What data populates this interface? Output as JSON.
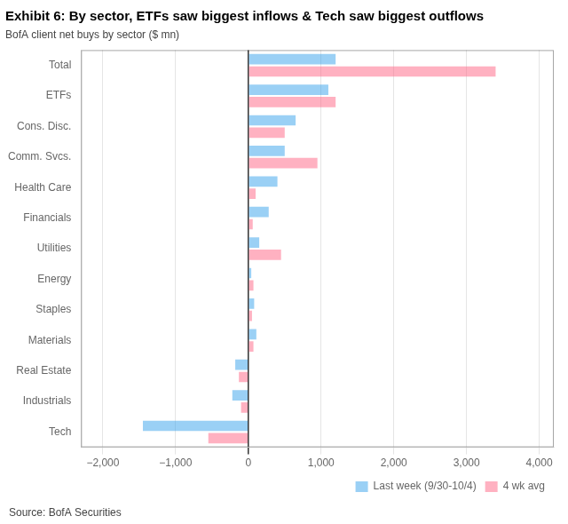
{
  "chart_data": {
    "type": "bar",
    "orientation": "horizontal",
    "title": "Exhibit 6: By sector, ETFs saw biggest inflows & Tech saw biggest outflows",
    "subtitle": "BofA client net buys by sector ($ mn)",
    "annotations": [
      "Source: BofA Securities"
    ],
    "categories": [
      "Total",
      "ETFs",
      "Cons. Disc.",
      "Comm. Svcs.",
      "Health Care",
      "Financials",
      "Utilities",
      "Energy",
      "Staples",
      "Materials",
      "Real Estate",
      "Industrials",
      "Tech"
    ],
    "series": [
      {
        "name": "Last week (9/30-10/4)",
        "values": [
          1200,
          1100,
          650,
          500,
          400,
          280,
          150,
          40,
          80,
          110,
          -180,
          -220,
          -1450
        ]
      },
      {
        "name": "4 wk avg",
        "values": [
          3400,
          1200,
          500,
          950,
          100,
          60,
          450,
          70,
          50,
          70,
          -130,
          -100,
          -550
        ]
      }
    ],
    "xlim": [
      -2300,
      4200
    ],
    "xticks": [
      {
        "value": -2000,
        "label": "−2,000"
      },
      {
        "value": -1000,
        "label": "−1,000"
      },
      0,
      {
        "value": 1000,
        "label": "1,000"
      },
      {
        "value": 2000,
        "label": "2,000"
      },
      {
        "value": 3000,
        "label": "3,000"
      },
      {
        "value": 4000,
        "label": "4,000"
      }
    ],
    "grid": true,
    "legend": "lower right"
  }
}
